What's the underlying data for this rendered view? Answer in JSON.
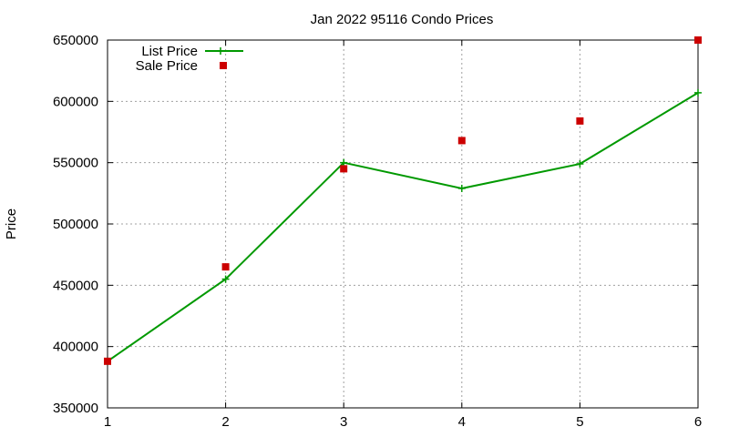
{
  "chart_data": {
    "type": "line",
    "title": "Jan 2022 95116 Condo Prices",
    "xlabel": "",
    "ylabel": "Price",
    "x": [
      1,
      2,
      3,
      4,
      5,
      6
    ],
    "xlim": [
      1,
      6
    ],
    "ylim": [
      350000,
      650000
    ],
    "xticks": [
      "1",
      "2",
      "3",
      "4",
      "5",
      "6"
    ],
    "yticks": [
      "350000",
      "400000",
      "450000",
      "500000",
      "550000",
      "600000",
      "650000"
    ],
    "grid": true,
    "legend_position": "top-left",
    "series": [
      {
        "name": "List Price",
        "style": "line-with-plus-markers",
        "color": "#009900",
        "values": [
          388000,
          455000,
          550000,
          529000,
          549000,
          607000
        ]
      },
      {
        "name": "Sale Price",
        "style": "square-markers",
        "color": "#cc0000",
        "values": [
          388000,
          465000,
          545000,
          568000,
          584000,
          650000
        ]
      }
    ]
  }
}
